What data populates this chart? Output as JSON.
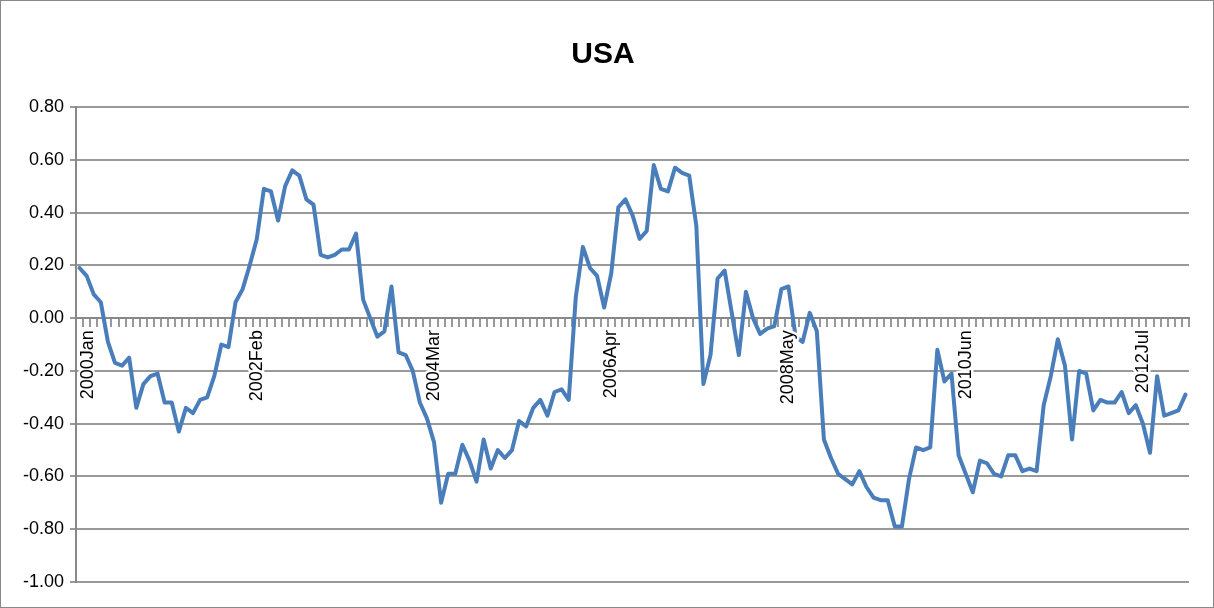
{
  "chart_data": {
    "type": "line",
    "title": "USA",
    "categories": [
      "2000Jan",
      null,
      null,
      null,
      null,
      null,
      null,
      null,
      null,
      null,
      null,
      null,
      null,
      null,
      null,
      null,
      null,
      null,
      null,
      null,
      null,
      null,
      null,
      null,
      null,
      "2002Feb",
      null,
      null,
      null,
      null,
      null,
      null,
      null,
      null,
      null,
      null,
      null,
      null,
      null,
      null,
      null,
      null,
      null,
      null,
      null,
      null,
      null,
      null,
      null,
      null,
      "2004Mar",
      null,
      null,
      null,
      null,
      null,
      null,
      null,
      null,
      null,
      null,
      null,
      null,
      null,
      null,
      null,
      null,
      null,
      null,
      null,
      null,
      null,
      null,
      null,
      null,
      "2006Apr",
      null,
      null,
      null,
      null,
      null,
      null,
      null,
      null,
      null,
      null,
      null,
      null,
      null,
      null,
      null,
      null,
      null,
      null,
      null,
      null,
      null,
      null,
      null,
      null,
      "2008May",
      null,
      null,
      null,
      null,
      null,
      null,
      null,
      null,
      null,
      null,
      null,
      null,
      null,
      null,
      null,
      null,
      null,
      null,
      null,
      null,
      null,
      null,
      null,
      null,
      "2010Jun",
      null,
      null,
      null,
      null,
      null,
      null,
      null,
      null,
      null,
      null,
      null,
      null,
      null,
      null,
      null,
      null,
      null,
      null,
      null,
      null,
      null,
      null,
      null,
      null,
      "2012Jul",
      null,
      null,
      null,
      null,
      null,
      null
    ],
    "series": [
      {
        "color": "#4a7ebb",
        "values": [
          0.19,
          0.16,
          0.09,
          0.06,
          -0.09,
          -0.17,
          -0.18,
          -0.15,
          -0.34,
          -0.25,
          -0.22,
          -0.21,
          -0.32,
          -0.32,
          -0.43,
          -0.34,
          -0.36,
          -0.31,
          -0.3,
          -0.22,
          -0.1,
          -0.11,
          0.06,
          0.11,
          0.2,
          0.3,
          0.49,
          0.48,
          0.37,
          0.5,
          0.56,
          0.54,
          0.45,
          0.43,
          0.24,
          0.23,
          0.24,
          0.26,
          0.26,
          0.32,
          0.07,
          0.0,
          -0.07,
          -0.05,
          0.12,
          -0.13,
          -0.14,
          -0.2,
          -0.32,
          -0.38,
          -0.47,
          -0.7,
          -0.59,
          -0.59,
          -0.48,
          -0.54,
          -0.62,
          -0.46,
          -0.57,
          -0.5,
          -0.53,
          -0.5,
          -0.39,
          -0.41,
          -0.34,
          -0.31,
          -0.37,
          -0.28,
          -0.27,
          -0.31,
          0.08,
          0.27,
          0.19,
          0.16,
          0.04,
          0.17,
          0.42,
          0.45,
          0.39,
          0.3,
          0.33,
          0.58,
          0.49,
          0.48,
          0.57,
          0.55,
          0.54,
          0.35,
          -0.25,
          -0.14,
          0.15,
          0.18,
          0.02,
          -0.14,
          0.1,
          0.0,
          -0.06,
          -0.04,
          -0.03,
          0.11,
          0.12,
          -0.07,
          -0.09,
          0.02,
          -0.05,
          -0.46,
          -0.53,
          -0.59,
          -0.61,
          -0.63,
          -0.58,
          -0.64,
          -0.68,
          -0.69,
          -0.69,
          -0.79,
          -0.79,
          -0.61,
          -0.49,
          -0.5,
          -0.49,
          -0.12,
          -0.24,
          -0.21,
          -0.52,
          -0.59,
          -0.66,
          -0.54,
          -0.55,
          -0.59,
          -0.6,
          -0.52,
          -0.52,
          -0.58,
          -0.57,
          -0.58,
          -0.33,
          -0.22,
          -0.08,
          -0.18,
          -0.46,
          -0.2,
          -0.21,
          -0.35,
          -0.31,
          -0.32,
          -0.32,
          -0.28,
          -0.36,
          -0.33,
          -0.4,
          -0.51,
          -0.22,
          -0.37,
          -0.36,
          -0.35,
          -0.29
        ]
      }
    ],
    "ylim": [
      -1.0,
      0.8
    ],
    "yticks": [
      {
        "value": -1.0,
        "label": "-1.00"
      },
      {
        "value": -0.8,
        "label": "-0.80"
      },
      {
        "value": -0.6,
        "label": "-0.60"
      },
      {
        "value": -0.4,
        "label": "-0.40"
      },
      {
        "value": -0.2,
        "label": "-0.20"
      },
      {
        "value": 0,
        "label": "0.00"
      },
      {
        "value": 0.2,
        "label": "0.20"
      },
      {
        "value": 0.4,
        "label": "0.40"
      },
      {
        "value": 0.6,
        "label": "0.60"
      },
      {
        "value": 0.8,
        "label": "0.80"
      }
    ],
    "grid": "y",
    "marker": "none"
  }
}
